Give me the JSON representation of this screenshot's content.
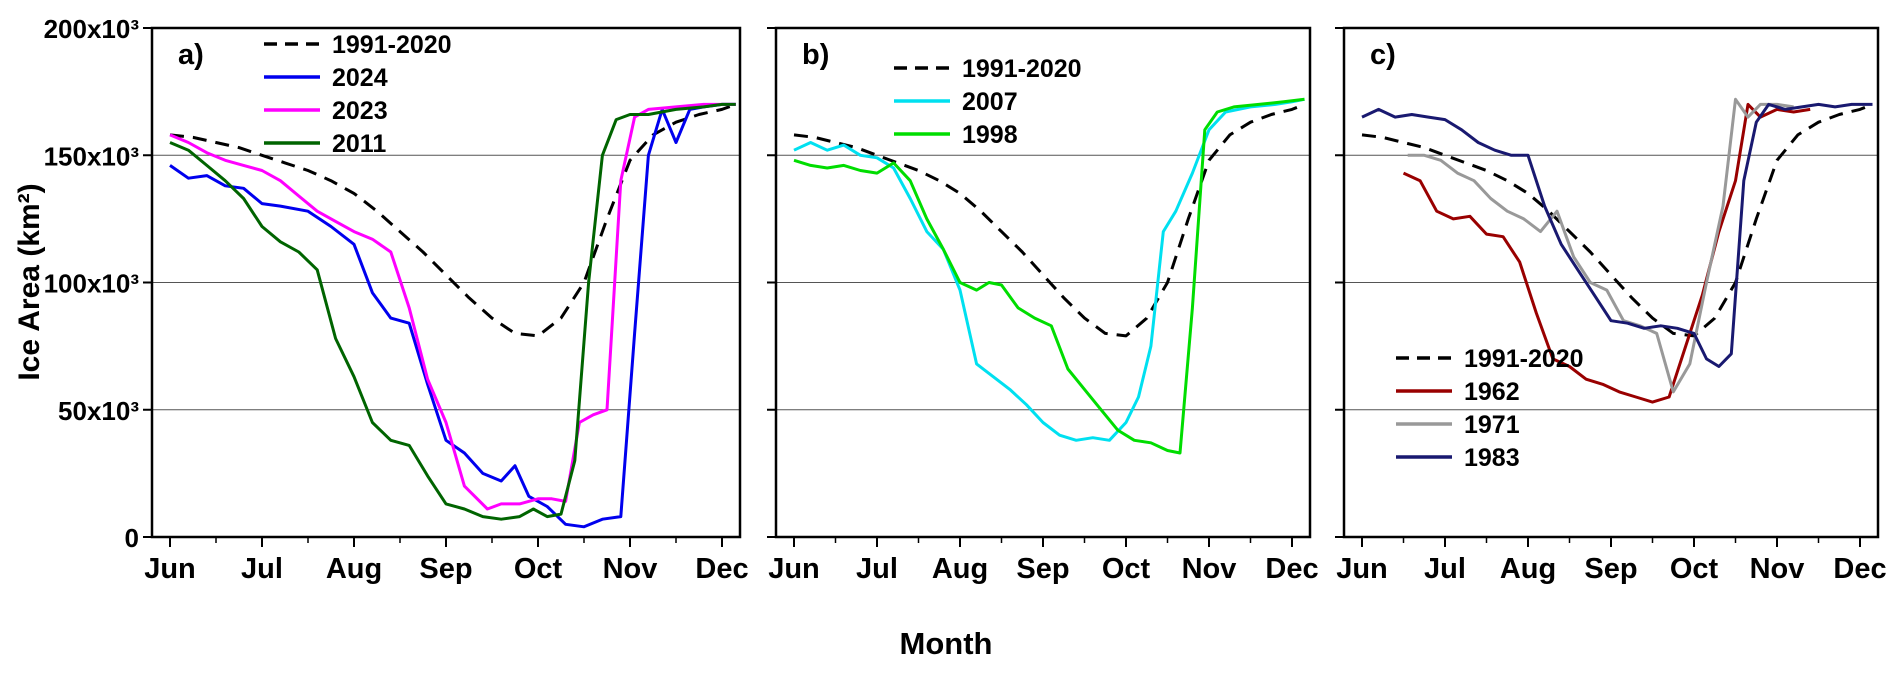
{
  "figure": {
    "background": "#ffffff",
    "xlabel": "Month",
    "ylabel": "Ice Area (km²)"
  },
  "axes": {
    "months": [
      "Jun",
      "Jul",
      "Aug",
      "Sep",
      "Oct",
      "Nov",
      "Dec"
    ],
    "yticks": [
      {
        "value": 0,
        "label": "0"
      },
      {
        "value": 50,
        "label": "50x10³"
      },
      {
        "value": 100,
        "label": "100x10³"
      },
      {
        "value": 150,
        "label": "150x10³"
      },
      {
        "value": 200,
        "label": "200x10³"
      }
    ],
    "y_units": "10³ km²"
  },
  "chart_data": [
    {
      "type": "line",
      "label": "a)",
      "xlabel": "Month",
      "ylabel": "Ice Area (km²)",
      "ylim": [
        0,
        200
      ],
      "xticklabels": [
        "Jun",
        "Jul",
        "Aug",
        "Sep",
        "Oct",
        "Nov",
        "Dec"
      ],
      "legend_position": "top-left-inside",
      "series": [
        {
          "name": "1991-2020",
          "color": "#000000",
          "dash": true,
          "x": [
            0,
            0.25,
            0.5,
            0.75,
            1,
            1.25,
            1.5,
            1.75,
            2,
            2.25,
            2.5,
            2.75,
            3,
            3.25,
            3.5,
            3.75,
            4,
            4.25,
            4.5,
            4.75,
            5,
            5.25,
            5.5,
            5.75,
            6,
            6.15
          ],
          "y": [
            158,
            157,
            155,
            153,
            150,
            147,
            144,
            140,
            135,
            128,
            120,
            112,
            103,
            94,
            86,
            80,
            79,
            86,
            100,
            125,
            148,
            158,
            163,
            166,
            168,
            170
          ]
        },
        {
          "name": "2024",
          "color": "#0000ee",
          "dash": false,
          "x": [
            0,
            0.2,
            0.4,
            0.6,
            0.8,
            1,
            1.2,
            1.5,
            1.75,
            2,
            2.2,
            2.4,
            2.6,
            2.8,
            3,
            3.2,
            3.4,
            3.6,
            3.75,
            3.9,
            4.1,
            4.3,
            4.5,
            4.7,
            4.9,
            5.05,
            5.2,
            5.35,
            5.5,
            5.65,
            5.8,
            6,
            6.15
          ],
          "y": [
            146,
            141,
            142,
            138,
            137,
            131,
            130,
            128,
            122,
            115,
            96,
            86,
            84,
            60,
            38,
            33,
            25,
            22,
            28,
            16,
            12,
            5,
            4,
            7,
            8,
            80,
            150,
            168,
            155,
            168,
            169,
            170,
            170
          ]
        },
        {
          "name": "2023",
          "color": "#ff00ff",
          "dash": false,
          "x": [
            0,
            0.2,
            0.4,
            0.6,
            0.8,
            1,
            1.2,
            1.4,
            1.6,
            1.8,
            2,
            2.2,
            2.4,
            2.6,
            2.8,
            3,
            3.2,
            3.45,
            3.6,
            3.8,
            4,
            4.15,
            4.3,
            4.45,
            4.6,
            4.75,
            4.9,
            5.05,
            5.2,
            5.5,
            5.8,
            6,
            6.15
          ],
          "y": [
            158,
            155,
            151,
            148,
            146,
            144,
            140,
            134,
            128,
            124,
            120,
            117,
            112,
            90,
            62,
            45,
            20,
            11,
            13,
            13,
            15,
            15,
            14,
            45,
            48,
            50,
            140,
            165,
            168,
            169,
            170,
            170,
            170
          ]
        },
        {
          "name": "2011",
          "color": "#006400",
          "dash": false,
          "x": [
            0,
            0.2,
            0.4,
            0.6,
            0.8,
            1,
            1.2,
            1.4,
            1.6,
            1.8,
            2,
            2.2,
            2.4,
            2.6,
            2.8,
            3,
            3.2,
            3.4,
            3.6,
            3.8,
            3.95,
            4.1,
            4.25,
            4.4,
            4.55,
            4.7,
            4.85,
            5,
            5.2,
            5.5,
            5.8,
            6,
            6.15
          ],
          "y": [
            155,
            152,
            146,
            140,
            133,
            122,
            116,
            112,
            105,
            78,
            63,
            45,
            38,
            36,
            24,
            13,
            11,
            8,
            7,
            8,
            11,
            8,
            9,
            30,
            100,
            150,
            164,
            166,
            166,
            168,
            169,
            170,
            170
          ]
        }
      ]
    },
    {
      "type": "line",
      "label": "b)",
      "xlabel": "Month",
      "ylabel": "Ice Area (km²)",
      "ylim": [
        0,
        200
      ],
      "xticklabels": [
        "Jun",
        "Jul",
        "Aug",
        "Sep",
        "Oct",
        "Nov",
        "Dec"
      ],
      "legend_position": "top-center-inside",
      "series": [
        {
          "name": "1991-2020",
          "color": "#000000",
          "dash": true,
          "x": [
            0,
            0.25,
            0.5,
            0.75,
            1,
            1.25,
            1.5,
            1.75,
            2,
            2.25,
            2.5,
            2.75,
            3,
            3.25,
            3.5,
            3.75,
            4,
            4.25,
            4.5,
            4.75,
            5,
            5.25,
            5.5,
            5.75,
            6,
            6.15
          ],
          "y": [
            158,
            157,
            155,
            153,
            150,
            147,
            144,
            140,
            135,
            128,
            120,
            112,
            103,
            94,
            86,
            80,
            79,
            86,
            100,
            125,
            148,
            158,
            163,
            166,
            168,
            170
          ]
        },
        {
          "name": "2007",
          "color": "#00e0f0",
          "dash": false,
          "x": [
            0,
            0.2,
            0.4,
            0.6,
            0.8,
            1,
            1.2,
            1.4,
            1.6,
            1.8,
            2,
            2.2,
            2.4,
            2.6,
            2.8,
            3,
            3.2,
            3.4,
            3.6,
            3.8,
            4,
            4.15,
            4.3,
            4.45,
            4.6,
            4.8,
            5,
            5.2,
            5.5,
            5.8,
            6,
            6.15
          ],
          "y": [
            152,
            155,
            152,
            154,
            150,
            149,
            145,
            133,
            120,
            113,
            97,
            68,
            63,
            58,
            52,
            45,
            40,
            38,
            39,
            38,
            45,
            55,
            75,
            120,
            128,
            143,
            160,
            167,
            169,
            170,
            171,
            172
          ]
        },
        {
          "name": "1998",
          "color": "#00dd00",
          "dash": false,
          "x": [
            0,
            0.2,
            0.4,
            0.6,
            0.8,
            1,
            1.2,
            1.4,
            1.6,
            1.8,
            2,
            2.2,
            2.35,
            2.5,
            2.7,
            2.9,
            3.1,
            3.3,
            3.5,
            3.7,
            3.9,
            4.1,
            4.3,
            4.5,
            4.65,
            4.8,
            4.95,
            5.1,
            5.3,
            5.6,
            5.9,
            6.15
          ],
          "y": [
            148,
            146,
            145,
            146,
            144,
            143,
            147,
            140,
            125,
            113,
            100,
            97,
            100,
            99,
            90,
            86,
            83,
            66,
            58,
            50,
            42,
            38,
            37,
            34,
            33,
            90,
            160,
            167,
            169,
            170,
            171,
            172
          ]
        }
      ]
    },
    {
      "type": "line",
      "label": "c)",
      "xlabel": "Month",
      "ylabel": "Ice Area (km²)",
      "ylim": [
        0,
        200
      ],
      "xticklabels": [
        "Jun",
        "Jul",
        "Aug",
        "Sep",
        "Oct",
        "Nov",
        "Dec"
      ],
      "legend_position": "bottom-left-inside",
      "series": [
        {
          "name": "1991-2020",
          "color": "#000000",
          "dash": true,
          "x": [
            0,
            0.25,
            0.5,
            0.75,
            1,
            1.25,
            1.5,
            1.75,
            2,
            2.25,
            2.5,
            2.75,
            3,
            3.25,
            3.5,
            3.75,
            4,
            4.25,
            4.5,
            4.75,
            5,
            5.25,
            5.5,
            5.75,
            6,
            6.15
          ],
          "y": [
            158,
            157,
            155,
            153,
            150,
            147,
            144,
            140,
            135,
            128,
            120,
            112,
            103,
            94,
            86,
            80,
            79,
            86,
            100,
            125,
            148,
            158,
            163,
            166,
            168,
            170
          ]
        },
        {
          "name": "1962",
          "color": "#990000",
          "dash": false,
          "x": [
            0.5,
            0.7,
            0.9,
            1.1,
            1.3,
            1.5,
            1.7,
            1.9,
            2.1,
            2.3,
            2.5,
            2.7,
            2.9,
            3.1,
            3.3,
            3.5,
            3.7,
            3.9,
            4.1,
            4.3,
            4.5,
            4.65,
            4.8,
            5,
            5.2,
            5.4
          ],
          "y": [
            143,
            140,
            128,
            125,
            126,
            119,
            118,
            108,
            88,
            70,
            67,
            62,
            60,
            57,
            55,
            53,
            55,
            75,
            95,
            120,
            140,
            170,
            165,
            168,
            167,
            168
          ]
        },
        {
          "name": "1971",
          "color": "#999999",
          "dash": false,
          "x": [
            0.55,
            0.75,
            0.95,
            1.15,
            1.35,
            1.55,
            1.75,
            1.95,
            2.15,
            2.35,
            2.55,
            2.75,
            2.95,
            3.15,
            3.35,
            3.55,
            3.75,
            3.95,
            4.15,
            4.35,
            4.5,
            4.65,
            4.8,
            5,
            5.2
          ],
          "y": [
            150,
            150,
            148,
            143,
            140,
            133,
            128,
            125,
            120,
            128,
            110,
            100,
            97,
            85,
            83,
            80,
            57,
            68,
            100,
            130,
            172,
            165,
            170,
            170,
            169
          ]
        },
        {
          "name": "1983",
          "color": "#191970",
          "dash": false,
          "x": [
            0,
            0.2,
            0.4,
            0.6,
            0.8,
            1,
            1.2,
            1.4,
            1.6,
            1.8,
            2,
            2.2,
            2.4,
            2.6,
            2.8,
            3,
            3.2,
            3.4,
            3.6,
            3.8,
            4,
            4.15,
            4.3,
            4.45,
            4.6,
            4.75,
            4.9,
            5.1,
            5.3,
            5.5,
            5.7,
            5.9,
            6.15
          ],
          "y": [
            165,
            168,
            165,
            166,
            165,
            164,
            160,
            155,
            152,
            150,
            150,
            130,
            115,
            105,
            95,
            85,
            84,
            82,
            83,
            82,
            80,
            70,
            67,
            72,
            140,
            163,
            170,
            168,
            169,
            170,
            169,
            170,
            170
          ]
        }
      ]
    }
  ]
}
